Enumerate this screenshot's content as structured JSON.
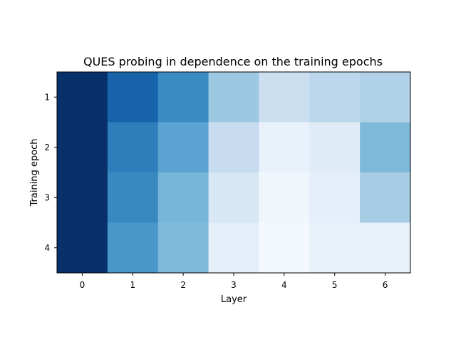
{
  "chart_data": {
    "type": "heatmap",
    "title": "QUES probing in dependence on the training epochs",
    "xlabel": "Layer",
    "ylabel": "Training epoch",
    "x_categories": [
      "0",
      "1",
      "2",
      "3",
      "4",
      "5",
      "6"
    ],
    "y_categories": [
      "1",
      "2",
      "3",
      "4"
    ],
    "colormap": "Blues",
    "values": [
      [
        1.0,
        0.8,
        0.65,
        0.38,
        0.22,
        0.28,
        0.32
      ],
      [
        1.0,
        0.7,
        0.55,
        0.24,
        0.07,
        0.12,
        0.45
      ],
      [
        1.0,
        0.66,
        0.47,
        0.16,
        0.04,
        0.09,
        0.35
      ],
      [
        1.0,
        0.6,
        0.45,
        0.1,
        0.02,
        0.08,
        0.08
      ]
    ]
  }
}
